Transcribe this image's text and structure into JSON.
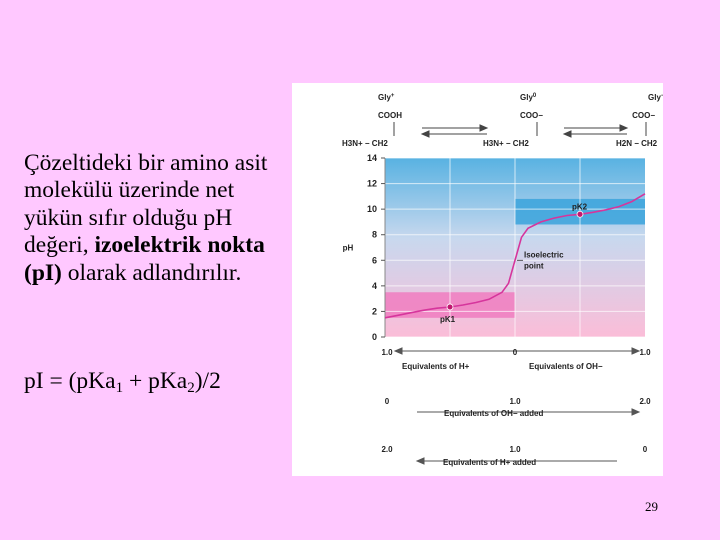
{
  "slide": {
    "paragraph": {
      "part1": "Çözeltideki bir amino asit molekülü üzerinde net yükün sıfır olduğu pH değeri, ",
      "bold": "izoelektrik nokta (pI)",
      "part2": " olarak adlandırılır."
    },
    "formula": {
      "lhs": "pI = (pKa",
      "sub1": "1",
      "mid": " + pKa",
      "sub2": "2",
      "end": ")/2"
    },
    "page_number": "29"
  },
  "figure": {
    "species": [
      {
        "name": "Gly",
        "sup": "+",
        "top_group": "COOH",
        "bottom_group": "H3N+ − CH2"
      },
      {
        "name": "Gly",
        "sup": "0",
        "top_group": "COO−",
        "bottom_group": "H3N+ − CH2"
      },
      {
        "name": "Gly",
        "sup": "−",
        "top_group": "COO−",
        "bottom_group": "H2N − CH2"
      }
    ],
    "annotations": {
      "pk2": "pK2",
      "pk1": "pK1",
      "isoelectric_line1": "Isoelectric",
      "isoelectric_line2": "point"
    },
    "main_axis": {
      "left": "1.0",
      "center": "0",
      "right": "1.0",
      "left_label": "Equivalents of H+",
      "right_label": "Equivalents of OH−"
    },
    "oh_axis": {
      "ticks": [
        "0",
        "1.0",
        "2.0"
      ],
      "label": "Equivalents of OH− added"
    },
    "h_axis": {
      "ticks": [
        "2.0",
        "1.0",
        "0"
      ],
      "label": "Equivalents of H+ added"
    }
  },
  "chart_data": {
    "type": "line",
    "title": "",
    "xlabel": "Equivalents of OH− added",
    "ylabel": "pH",
    "xlim": [
      0,
      2
    ],
    "ylim": [
      0,
      14
    ],
    "yticks": [
      0,
      2,
      4,
      6,
      8,
      10,
      12,
      14
    ],
    "grid": true,
    "series": [
      {
        "x": [
          0.0,
          0.1,
          0.2,
          0.3,
          0.4,
          0.5,
          0.6,
          0.7,
          0.8,
          0.9,
          0.95,
          1.0,
          1.05,
          1.1,
          1.2,
          1.3,
          1.4,
          1.5,
          1.6,
          1.7,
          1.8,
          1.9,
          2.0
        ],
        "y": [
          1.5,
          1.7,
          1.9,
          2.1,
          2.25,
          2.35,
          2.5,
          2.7,
          2.95,
          3.5,
          4.2,
          6.0,
          7.8,
          8.5,
          9.0,
          9.3,
          9.5,
          9.6,
          9.75,
          9.95,
          10.2,
          10.6,
          11.2
        ],
        "color": "#d6359c"
      }
    ],
    "points": [
      {
        "label": "pK1",
        "x": 0.5,
        "y": 2.35
      },
      {
        "label": "pK2",
        "x": 1.5,
        "y": 9.6
      },
      {
        "label": "Isoelectric point",
        "x": 1.0,
        "y": 6.0
      }
    ],
    "bands": [
      {
        "label": "pK1",
        "ymin": 1.5,
        "ymax": 3.5,
        "xmin": 0,
        "xmax": 1.0,
        "color": "#f07cc0"
      },
      {
        "label": "pK2",
        "ymin": 8.8,
        "ymax": 10.8,
        "xmin": 1.0,
        "xmax": 2.0,
        "color": "#3aa3dc"
      }
    ]
  }
}
